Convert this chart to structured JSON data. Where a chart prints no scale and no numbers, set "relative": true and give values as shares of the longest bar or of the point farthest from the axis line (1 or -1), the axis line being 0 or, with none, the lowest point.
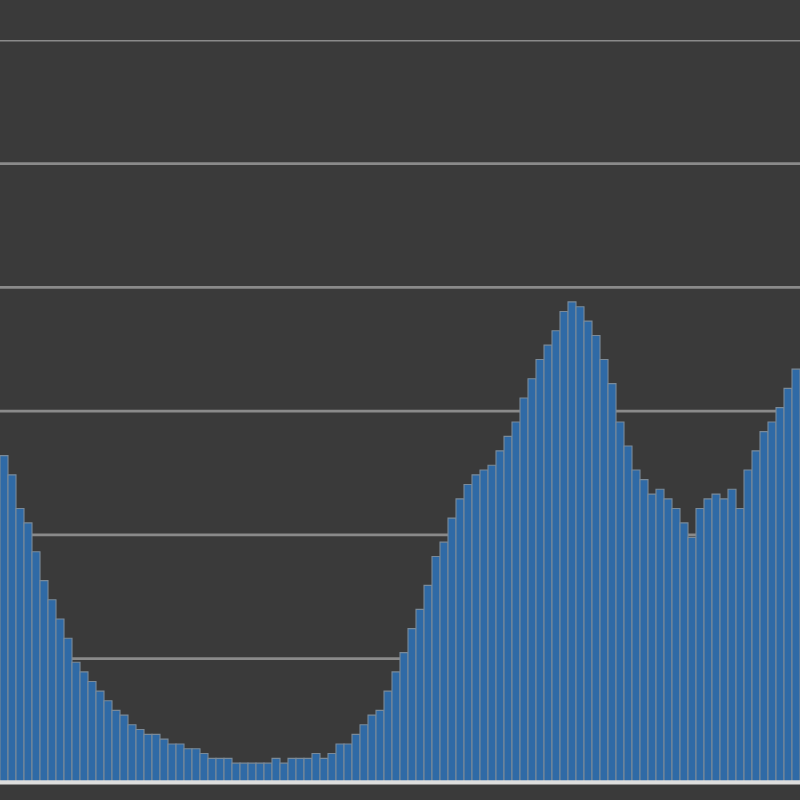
{
  "chart_data": {
    "type": "bar",
    "relative": true,
    "grid": "y",
    "color": "#2f6aa6",
    "categories": [
      null,
      null,
      null,
      null,
      null,
      null,
      null,
      null,
      null,
      null,
      null,
      null,
      null,
      null,
      null,
      null,
      null,
      null,
      null,
      null,
      null,
      null,
      null,
      null,
      null,
      null,
      null,
      null,
      null,
      null,
      null,
      null,
      null,
      null,
      null,
      null,
      null,
      null,
      null,
      null,
      null,
      null,
      null,
      null,
      null,
      null,
      null,
      null,
      null,
      null,
      null,
      null,
      null,
      null,
      null,
      null,
      null,
      null,
      null,
      null,
      null,
      null,
      null,
      null,
      null,
      null,
      null,
      null,
      null,
      null,
      null,
      null,
      null,
      null,
      null,
      null,
      null,
      null,
      null,
      null,
      null,
      null,
      null,
      null,
      null,
      null,
      null,
      null,
      null,
      null,
      null,
      null,
      null,
      null,
      null,
      null,
      null,
      null,
      null,
      null
    ],
    "values": [
      0.68,
      0.64,
      0.57,
      0.54,
      0.48,
      0.42,
      0.38,
      0.34,
      0.3,
      0.25,
      0.23,
      0.21,
      0.19,
      0.17,
      0.15,
      0.14,
      0.12,
      0.11,
      0.1,
      0.1,
      0.09,
      0.08,
      0.08,
      0.07,
      0.07,
      0.06,
      0.05,
      0.05,
      0.05,
      0.04,
      0.04,
      0.04,
      0.04,
      0.04,
      0.05,
      0.04,
      0.05,
      0.05,
      0.05,
      0.06,
      0.05,
      0.06,
      0.08,
      0.08,
      0.1,
      0.12,
      0.14,
      0.15,
      0.19,
      0.23,
      0.27,
      0.32,
      0.36,
      0.41,
      0.47,
      0.5,
      0.55,
      0.59,
      0.62,
      0.64,
      0.65,
      0.66,
      0.69,
      0.72,
      0.75,
      0.8,
      0.84,
      0.88,
      0.91,
      0.94,
      0.98,
      1,
      0.99,
      0.96,
      0.93,
      0.88,
      0.83,
      0.75,
      0.7,
      0.65,
      0.63,
      0.6,
      0.61,
      0.59,
      0.57,
      0.54,
      0.51,
      0.57,
      0.59,
      0.6,
      0.59,
      0.61,
      0.57,
      0.65,
      0.69,
      0.73,
      0.75,
      0.78,
      0.82,
      0.86
    ]
  }
}
